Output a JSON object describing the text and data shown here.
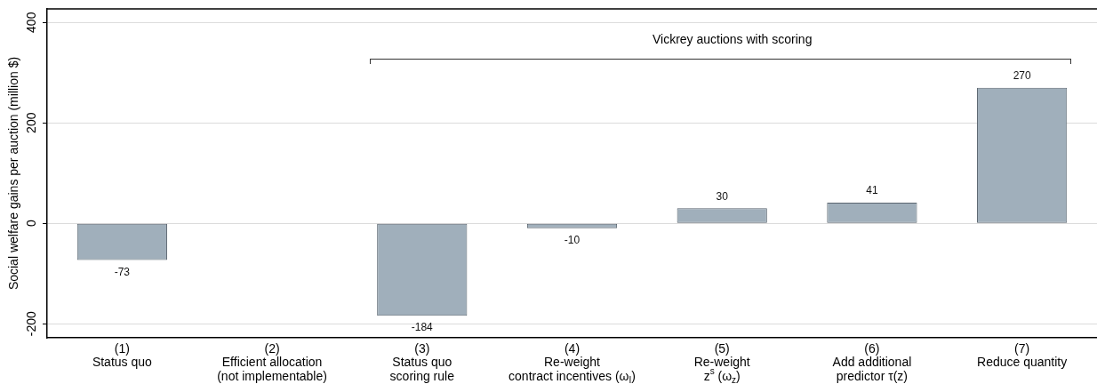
{
  "chart_data": {
    "type": "bar",
    "ylabel": "Social welfare gains per auction (million $)",
    "categories": [
      "(1)\nStatus quo",
      "(2)\nEfficient allocation\n(not implementable)",
      "(3)\nStatus quo\nscoring rule",
      "(4)\nRe-weight\ncontract incentives (ω$_{I}$)",
      "(5)\nRe-weight\nz$^{s}$ (ω$_{z}$)",
      "(6)\nAdd additional\npredictor τ(z)",
      "(7)\nReduce quantity"
    ],
    "values": [
      -73,
      null,
      -184,
      -10,
      30,
      41,
      270
    ],
    "color": "#a0afbb",
    "ylim": [
      -228,
      427
    ],
    "yticks": [
      -200,
      0,
      200,
      400
    ],
    "grid": "y",
    "data_labels": true,
    "annotations": [
      "Vickrey auctions with scoring"
    ]
  }
}
